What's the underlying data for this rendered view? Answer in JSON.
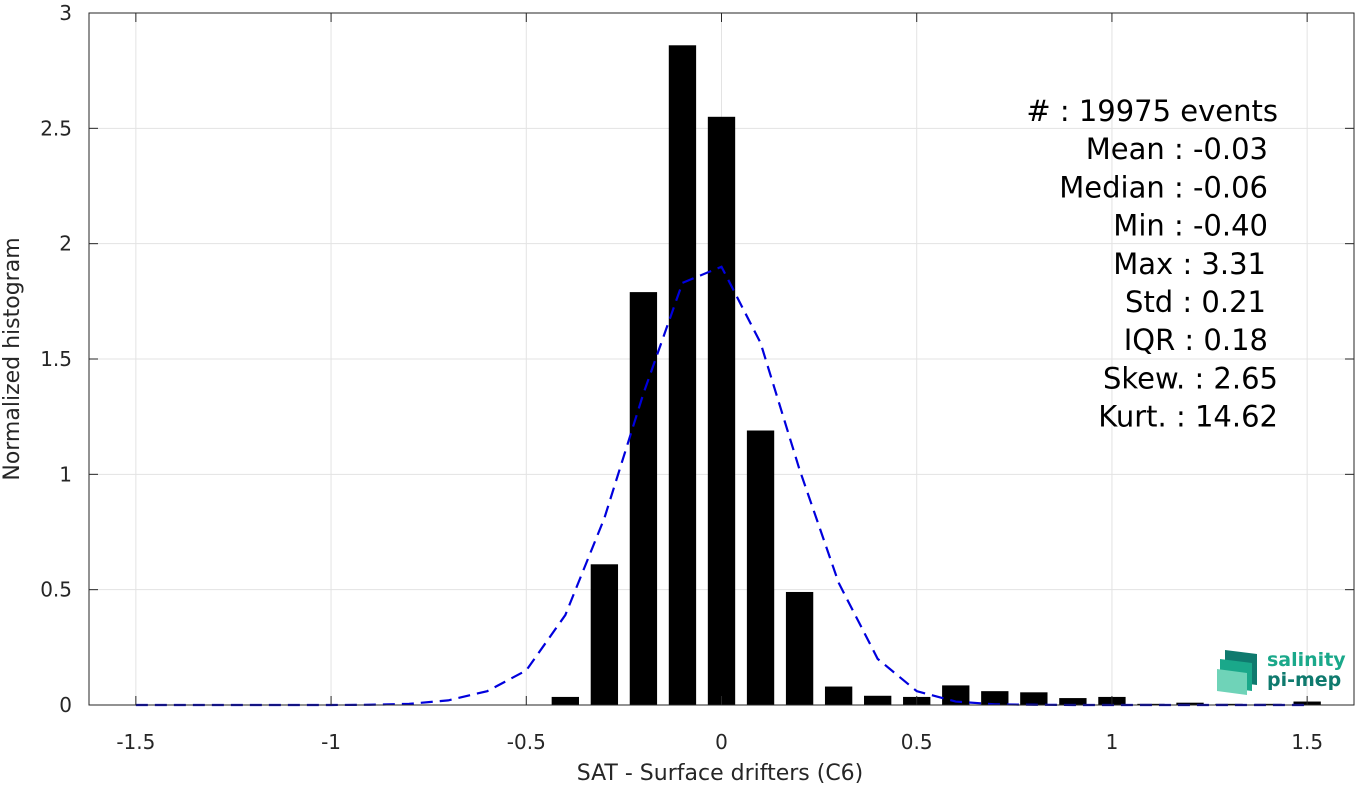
{
  "chart_data": {
    "type": "bar",
    "xlabel": "SAT - Surface drifters (C6)",
    "ylabel": "Normalized histogram",
    "xlim": [
      -1.62,
      1.62
    ],
    "ylim": [
      0,
      3
    ],
    "grid": true,
    "x_ticks": [
      -1.5,
      -1,
      -0.5,
      0,
      0.5,
      1,
      1.5
    ],
    "x_tick_labels": [
      "-1.5",
      "-1",
      "-0.5",
      "0",
      "0.5",
      "1",
      "1.5"
    ],
    "y_ticks": [
      0,
      0.5,
      1,
      1.5,
      2,
      2.5,
      3
    ],
    "y_tick_labels": [
      "0",
      "0.5",
      "1",
      "1.5",
      "2",
      "2.5",
      "3"
    ],
    "histogram": {
      "name": "Histogram",
      "color": "#000000",
      "x": [
        -0.4,
        -0.3,
        -0.2,
        -0.1,
        0.0,
        0.1,
        0.2,
        0.3,
        0.4,
        0.5,
        0.6,
        0.7,
        0.8,
        0.9,
        1.0,
        1.1,
        1.2,
        1.3,
        1.4,
        1.5
      ],
      "values": [
        0.035,
        0.61,
        1.79,
        2.86,
        2.55,
        1.19,
        0.49,
        0.08,
        0.04,
        0.035,
        0.085,
        0.06,
        0.055,
        0.03,
        0.035,
        0.005,
        0.01,
        0.005,
        0.005,
        0.015
      ]
    },
    "fit": {
      "name": "Gaussian fit",
      "color": "#0000dd",
      "style": "dashed",
      "x": [
        -1.5,
        -1.4,
        -1.3,
        -1.2,
        -1.1,
        -1.0,
        -0.9,
        -0.8,
        -0.7,
        -0.6,
        -0.5,
        -0.4,
        -0.3,
        -0.2,
        -0.1,
        0.0,
        0.1,
        0.2,
        0.3,
        0.4,
        0.5,
        0.6,
        0.7,
        0.8,
        0.9,
        1.0,
        1.1,
        1.2,
        1.3,
        1.4,
        1.5
      ],
      "y": [
        0,
        0,
        0,
        0,
        0,
        0,
        0.001,
        0.005,
        0.02,
        0.06,
        0.15,
        0.39,
        0.81,
        1.35,
        1.83,
        1.9,
        1.57,
        1.02,
        0.53,
        0.2,
        0.06,
        0.015,
        0.003,
        0.001,
        0,
        0,
        0,
        0,
        0,
        0,
        0
      ]
    },
    "annotations": [
      "#  : 19975 events",
      "Mean : -0.03",
      "Median : -0.06",
      "Min : -0.40",
      "Max : 3.31",
      "Std : 0.21",
      "IQR : 0.18",
      "Skew. : 2.65",
      "Kurt. : 14.62"
    ]
  },
  "logo": {
    "line1": "salinity",
    "line2": "pi-mep",
    "colors": [
      "#1aa88a",
      "#0f7a6e",
      "#6fd3b8"
    ]
  }
}
